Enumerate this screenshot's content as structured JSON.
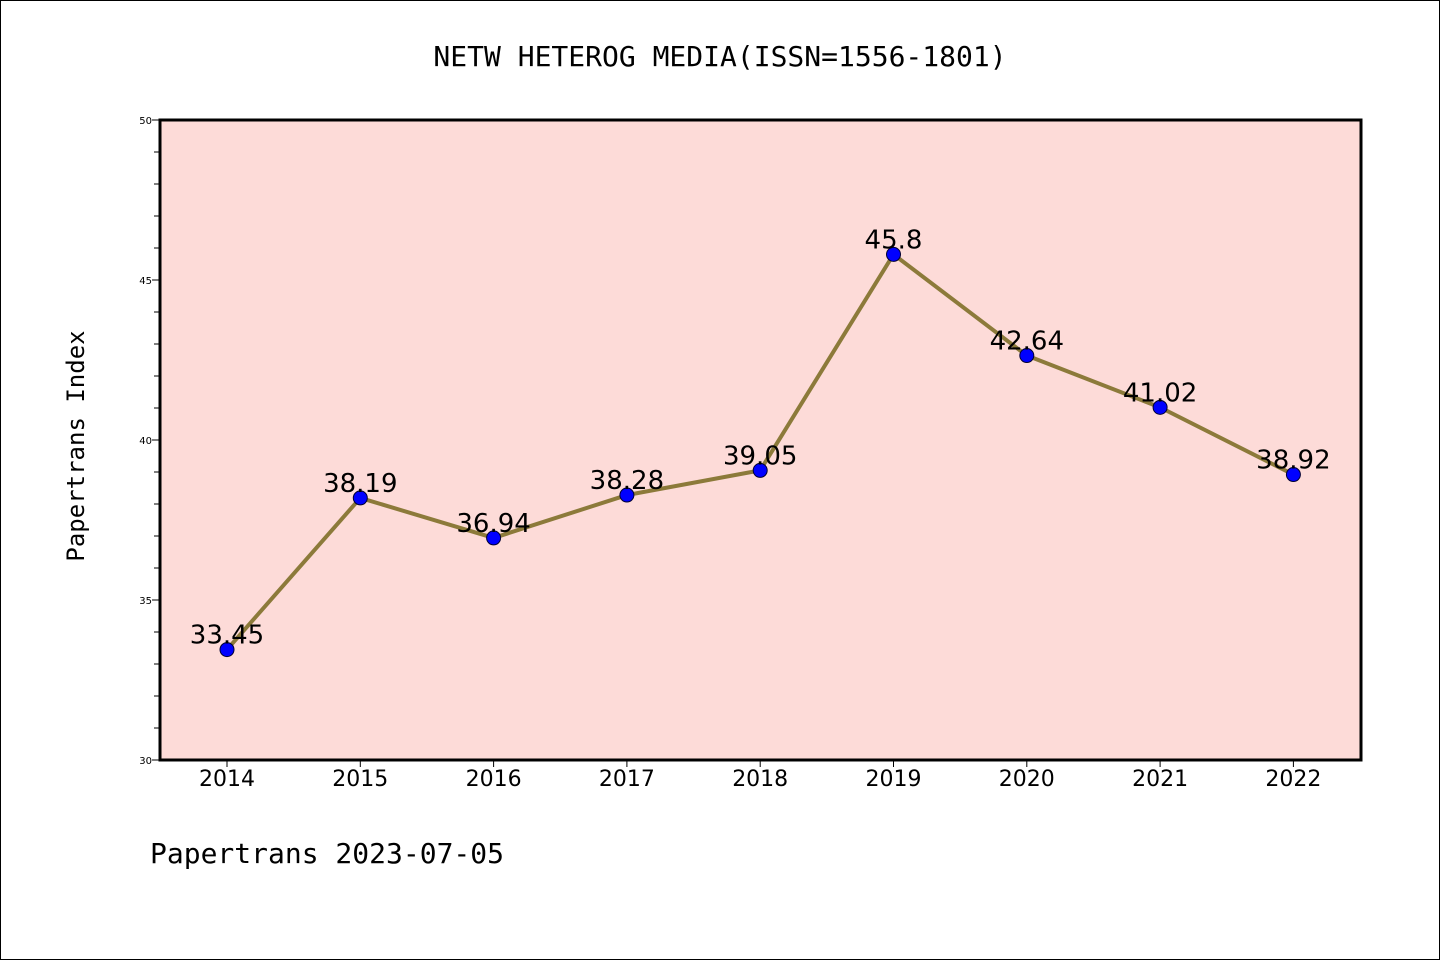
{
  "chart_data": {
    "type": "line",
    "title": "NETW HETEROG MEDIA(ISSN=1556-1801)",
    "ylabel": "Papertrans Index",
    "xlabel": "",
    "footer": "Papertrans 2023-07-05",
    "categories": [
      "2014",
      "2015",
      "2016",
      "2017",
      "2018",
      "2019",
      "2020",
      "2021",
      "2022"
    ],
    "series": [
      {
        "values": [
          33.45,
          38.19,
          36.94,
          38.28,
          39.05,
          45.8,
          42.64,
          41.02,
          38.92
        ],
        "data_labels": [
          "33.45",
          "38.19",
          "36.94",
          "38.28",
          "39.05",
          "45.8",
          "42.64",
          "41.02",
          "38.92"
        ]
      }
    ],
    "ylim": [
      30,
      50
    ],
    "yticks": [
      "30",
      "35",
      "40",
      "45",
      "50"
    ],
    "grid": false,
    "legend": "none",
    "colors": {
      "plot_background": "#fddbd8",
      "line": "#8c7a3a",
      "marker": "#0000ff"
    }
  }
}
